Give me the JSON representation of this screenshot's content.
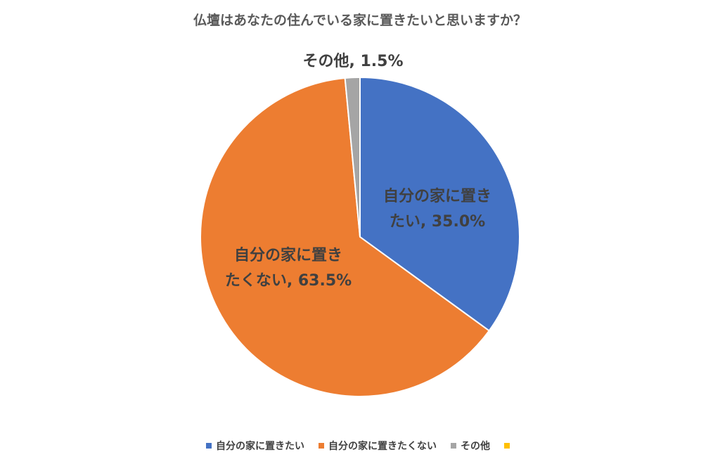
{
  "chart_data": {
    "type": "pie",
    "title": "仏壇はあなたの住んでいる家に置きたいと思いますか？",
    "slices": [
      {
        "name": "自分の家に置きたい",
        "value": 35.0,
        "label_line1": "自分の家に置き",
        "label_line2": "たい, 35.0%",
        "color": "#4472C4"
      },
      {
        "name": "自分の家に置きたくない",
        "value": 63.5,
        "label_line1": "自分の家に置き",
        "label_line2": "たくない, 63.5%",
        "color": "#ED7D31"
      },
      {
        "name": "その他",
        "value": 1.5,
        "label_line1": "その他, 1.5%",
        "label_line2": "",
        "color": "#A5A5A5"
      }
    ],
    "legend": {
      "placement": "bottom",
      "items": [
        {
          "label": "自分の家に置きたい",
          "color": "#4472C4"
        },
        {
          "label": "自分の家に置きたくない",
          "color": "#ED7D31"
        },
        {
          "label": "その他",
          "color": "#A5A5A5"
        },
        {
          "label": "",
          "color": "#FFC000"
        }
      ]
    }
  }
}
